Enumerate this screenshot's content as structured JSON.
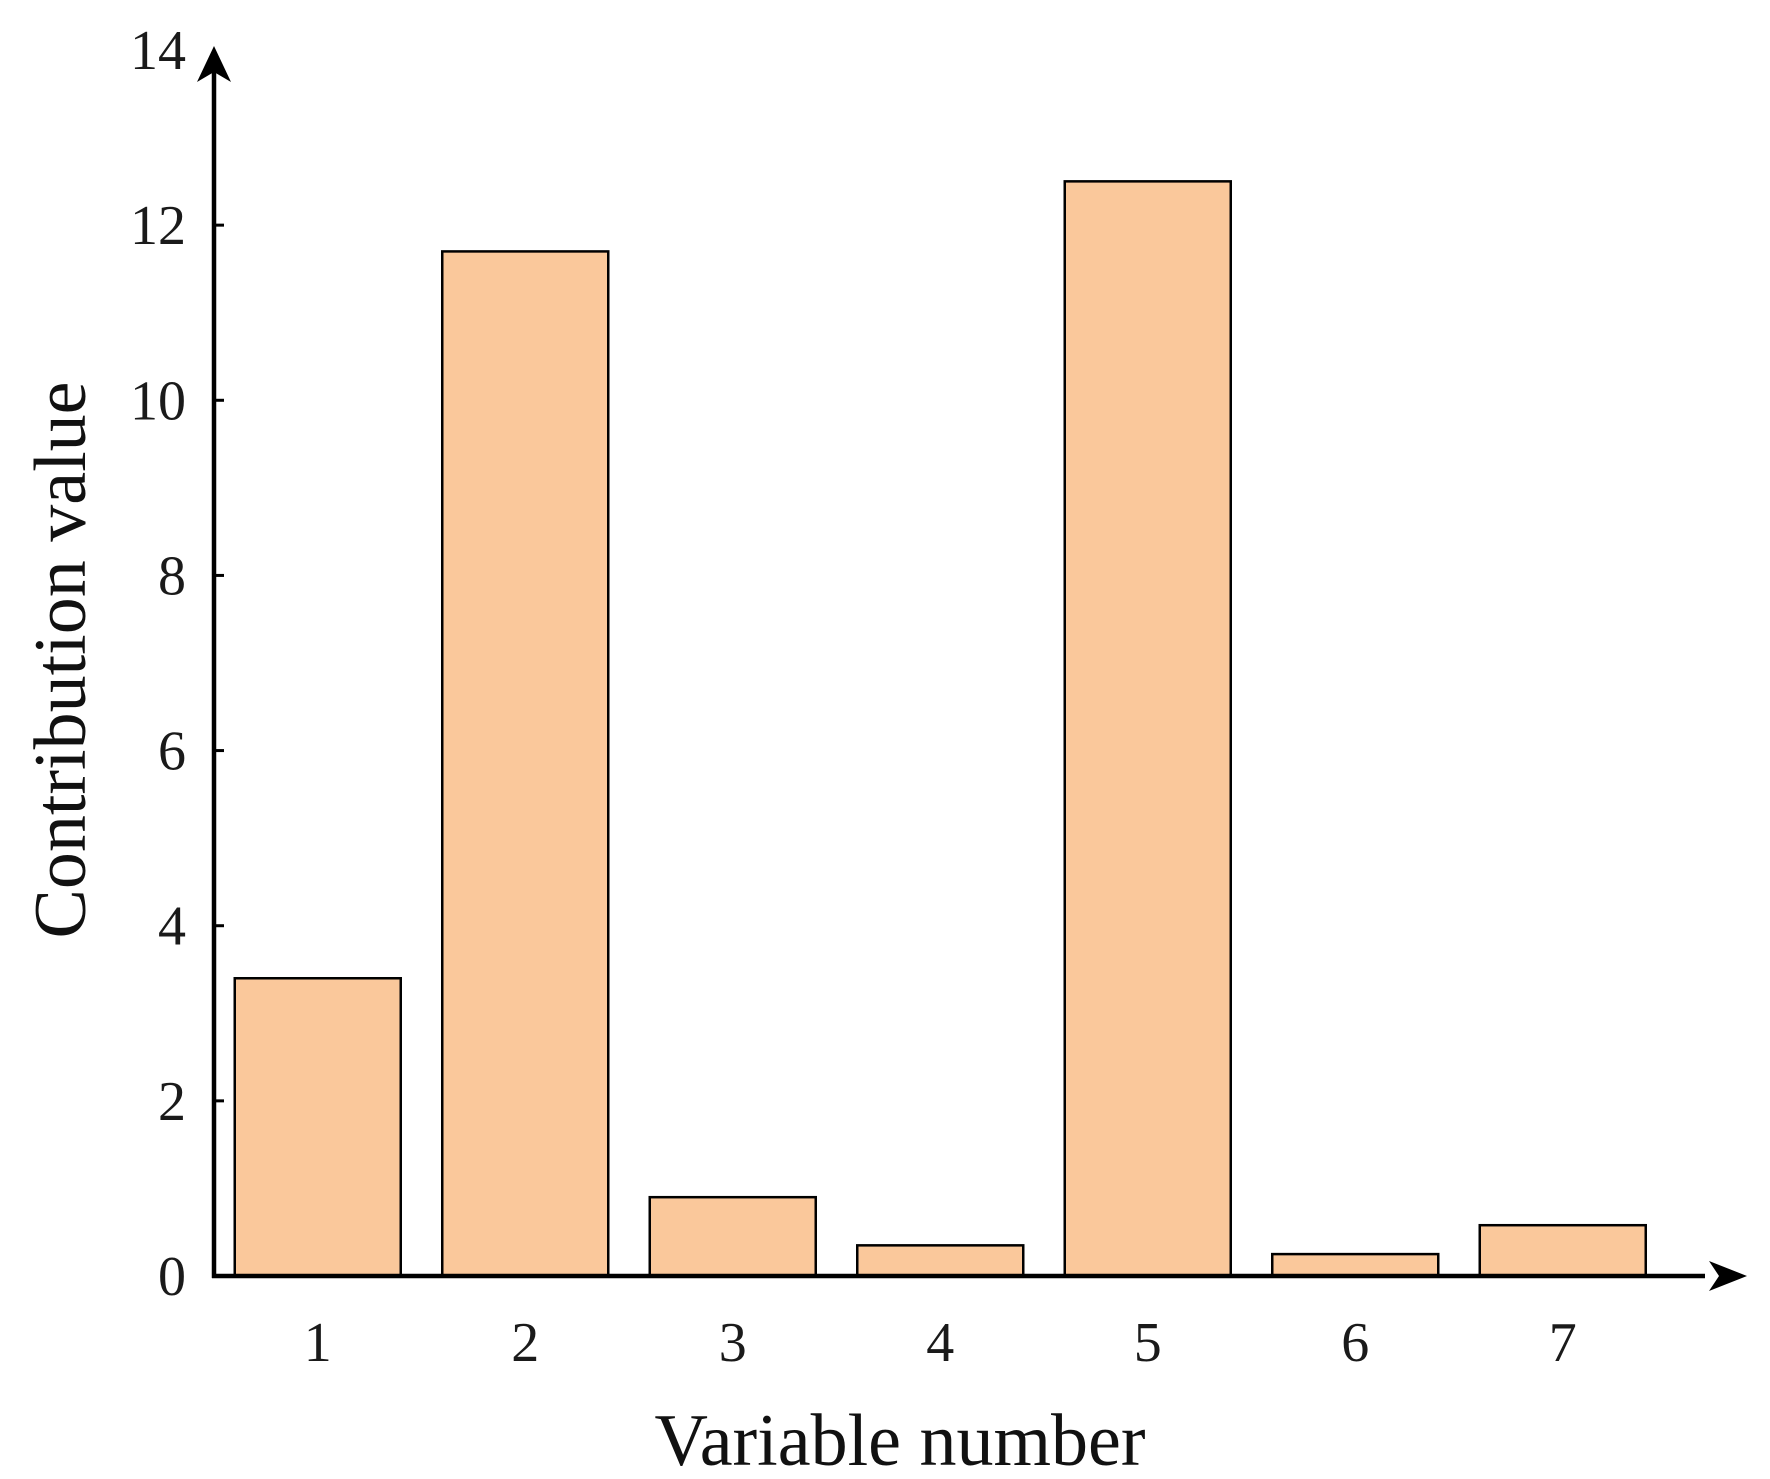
{
  "chart_data": {
    "type": "bar",
    "xlabel": "Variable number",
    "ylabel": "Contribution value",
    "categories": [
      "1",
      "2",
      "3",
      "4",
      "5",
      "6",
      "7"
    ],
    "values": [
      3.4,
      11.7,
      0.9,
      0.35,
      12.5,
      0.25,
      0.58
    ],
    "ylim": [
      0,
      14
    ],
    "yticks": [
      0,
      2,
      4,
      6,
      8,
      10,
      12,
      14
    ],
    "grid": false,
    "bar_color": "#FAC89B",
    "bar_edge_color": "#000000",
    "axis_color": "#000000"
  }
}
